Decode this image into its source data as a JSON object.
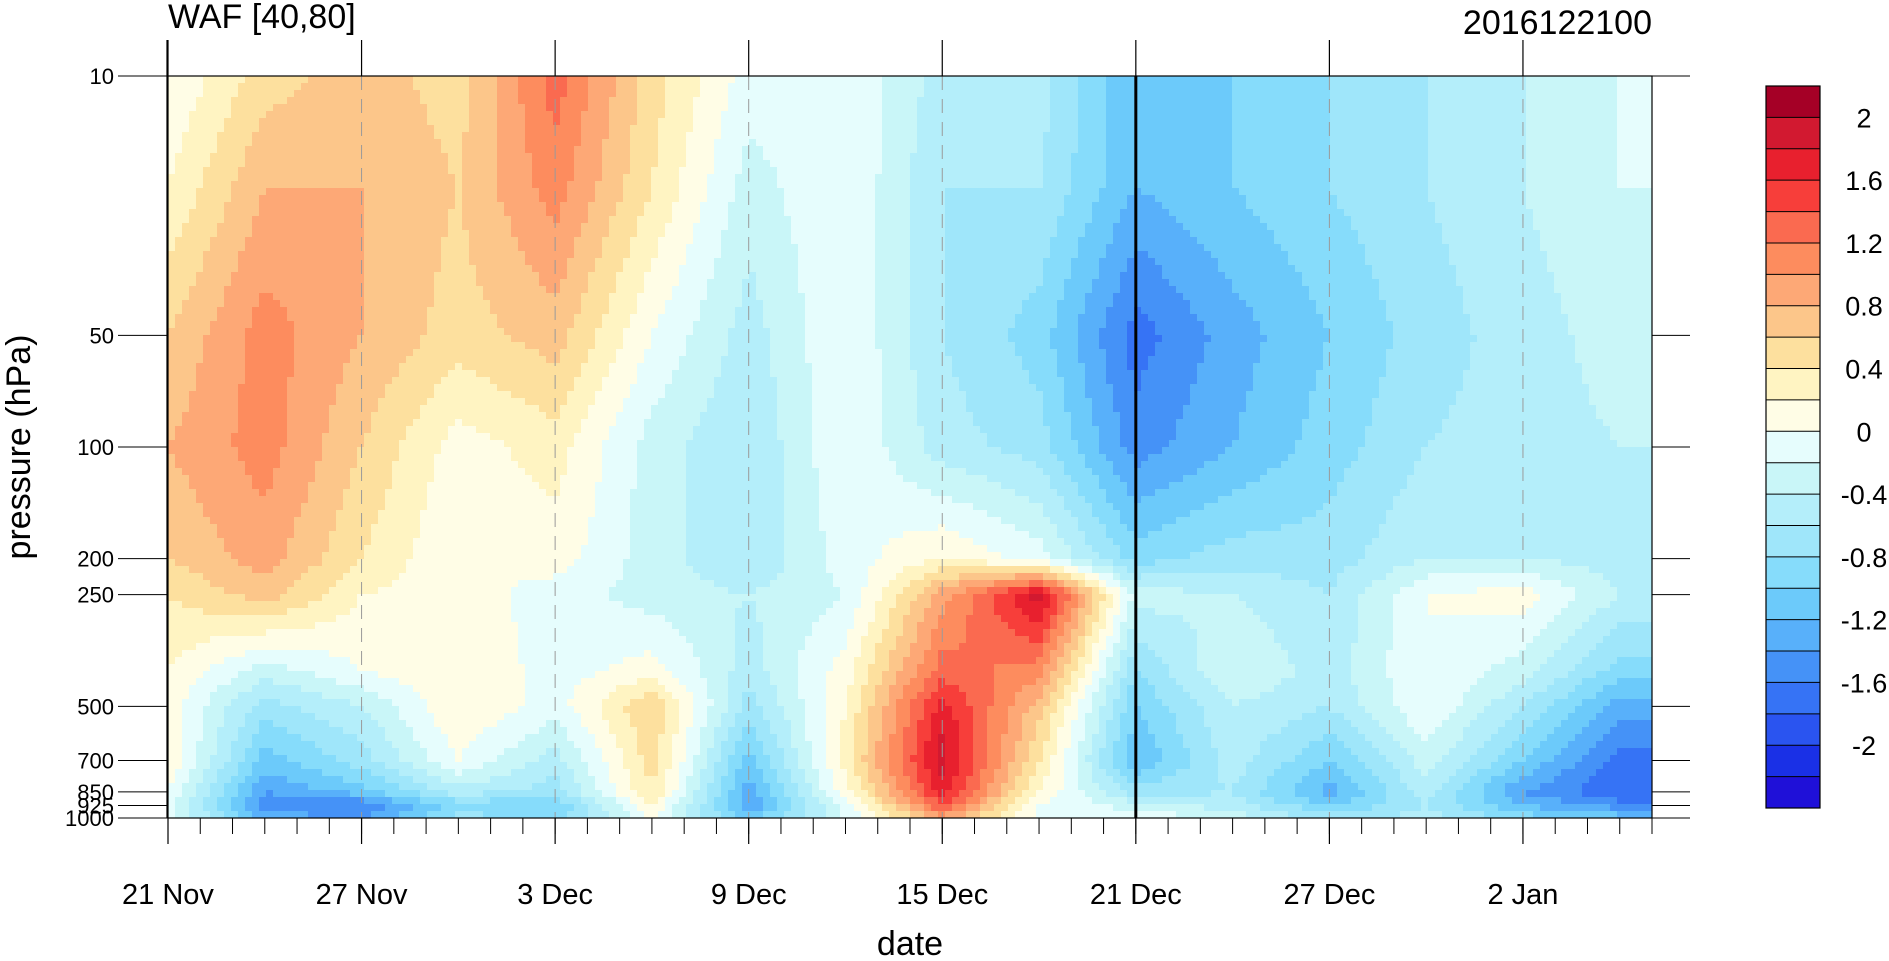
{
  "chart_data": {
    "type": "heatmap",
    "title": "WAF [40,80]",
    "subtitle_right": "2016122100",
    "xlabel": "date",
    "ylabel": "pressure (hPa)",
    "x_tick_labels": [
      "21 Nov",
      "27 Nov",
      "3 Dec",
      "9 Dec",
      "15 Dec",
      "21 Dec",
      "27 Dec",
      "2 Jan"
    ],
    "x_tick_dates": [
      "2016-11-21",
      "2016-11-27",
      "2016-12-03",
      "2016-12-09",
      "2016-12-15",
      "2016-12-21",
      "2016-12-27",
      "2017-01-02"
    ],
    "xlim": [
      "2016-11-21",
      "2017-01-06"
    ],
    "y_scale": "log",
    "y_inverted": true,
    "y_tick_labels": [
      "10",
      "50",
      "100",
      "200",
      "250",
      "500",
      "700",
      "850",
      "925",
      "1000"
    ],
    "y_tick_values": [
      10,
      50,
      100,
      200,
      250,
      500,
      700,
      850,
      925,
      1000
    ],
    "ylim": [
      1000,
      10
    ],
    "reference_line_date": "2016-12-21",
    "colorbar": {
      "tick_labels": [
        "2",
        "1.6",
        "1.2",
        "0.8",
        "0.4",
        "0",
        "-0.4",
        "-0.8",
        "-1.2",
        "-1.6",
        "-2"
      ],
      "levels": [
        2.2,
        2.0,
        1.8,
        1.6,
        1.4,
        1.2,
        1.0,
        0.8,
        0.6,
        0.4,
        0.2,
        0,
        -0.2,
        -0.4,
        -0.6,
        -0.8,
        -1.0,
        -1.2,
        -1.4,
        -1.6,
        -1.8,
        -2.0,
        -2.2
      ],
      "colors": [
        "#a50026",
        "#d21930",
        "#e8202e",
        "#f73e3a",
        "#fa6a50",
        "#fd8c5e",
        "#fda876",
        "#fcc68a",
        "#fde09e",
        "#fff4c2",
        "#fffde6",
        "#e6fdfd",
        "#c9f6f8",
        "#b4eefa",
        "#9fe6fa",
        "#86dcfb",
        "#6ccafa",
        "#58b0fa",
        "#4592f7",
        "#3673f5",
        "#2a54f0",
        "#1a30e6",
        "#1f10d8"
      ]
    },
    "grid_rows_pressure_hpa": [
      10,
      20,
      50,
      100,
      200,
      250,
      400,
      500,
      700,
      850,
      925,
      1000
    ],
    "grid_cols_dates": [
      "2016-11-21",
      "2016-11-24",
      "2016-11-27",
      "2016-11-30",
      "2016-12-03",
      "2016-12-06",
      "2016-12-09",
      "2016-12-12",
      "2016-12-15",
      "2016-12-18",
      "2016-12-21",
      "2016-12-24",
      "2016-12-27",
      "2016-12-30",
      "2017-01-02",
      "2017-01-05"
    ],
    "values": [
      [
        0.1,
        0.6,
        0.8,
        0.6,
        1.4,
        0.6,
        0.0,
        0.1,
        -0.4,
        -0.4,
        -1.1,
        -0.9,
        -0.7,
        -0.5,
        -0.3,
        -0.1
      ],
      [
        0.3,
        0.9,
        0.9,
        0.7,
        1.2,
        0.5,
        -0.2,
        0.1,
        -0.5,
        -0.5,
        -1.1,
        -0.9,
        -0.7,
        -0.5,
        -0.3,
        -0.1
      ],
      [
        0.7,
        1.2,
        0.9,
        0.6,
        0.8,
        0.1,
        -0.4,
        0.1,
        -0.5,
        -0.8,
        -1.6,
        -1.2,
        -0.9,
        -0.6,
        -0.4,
        -0.2
      ],
      [
        0.9,
        1.2,
        0.7,
        0.2,
        0.4,
        -0.2,
        -0.5,
        0.1,
        -0.4,
        -0.6,
        -1.4,
        -1.1,
        -0.8,
        -0.5,
        -0.4,
        -0.3
      ],
      [
        0.7,
        1.0,
        0.5,
        0.1,
        0.2,
        -0.2,
        -0.5,
        0.0,
        0.3,
        0.0,
        -0.8,
        -0.6,
        -0.6,
        -0.3,
        -0.3,
        -0.4
      ],
      [
        0.5,
        0.8,
        0.3,
        0.2,
        0.0,
        -0.2,
        -0.3,
        -0.1,
        1.0,
        2.0,
        -0.2,
        -0.3,
        -0.5,
        0.1,
        0.2,
        -0.3
      ],
      [
        0.3,
        -0.2,
        0.1,
        0.3,
        0.0,
        0.2,
        -0.4,
        0.2,
        1.4,
        1.2,
        -0.7,
        -0.1,
        -0.4,
        0.1,
        -0.2,
        -0.8
      ],
      [
        0.2,
        -0.6,
        -0.3,
        0.3,
        0.0,
        0.7,
        -0.6,
        0.3,
        1.8,
        0.8,
        -0.9,
        -0.3,
        -0.5,
        0.1,
        -0.5,
        -1.2
      ],
      [
        0.3,
        -1.0,
        -0.6,
        0.1,
        -0.4,
        0.6,
        -1.0,
        0.4,
        2.0,
        0.5,
        -1.1,
        -0.4,
        -0.9,
        -0.2,
        -0.9,
        -1.6
      ],
      [
        0.1,
        -1.3,
        -1.0,
        -0.4,
        -0.6,
        0.5,
        -1.2,
        0.2,
        1.8,
        0.3,
        -0.6,
        -0.5,
        -1.2,
        -0.4,
        -1.3,
        -1.7
      ],
      [
        0.0,
        -1.4,
        -1.5,
        -0.8,
        -0.9,
        0.3,
        -1.3,
        0.0,
        1.5,
        0.1,
        -0.2,
        -0.4,
        -0.9,
        -0.5,
        -1.1,
        -1.4
      ],
      [
        0.0,
        -1.2,
        -1.3,
        -0.6,
        -0.8,
        0.1,
        -1.0,
        -0.1,
        1.0,
        0.0,
        0.1,
        -0.2,
        -0.6,
        -0.4,
        -0.8,
        -1.0
      ]
    ]
  }
}
